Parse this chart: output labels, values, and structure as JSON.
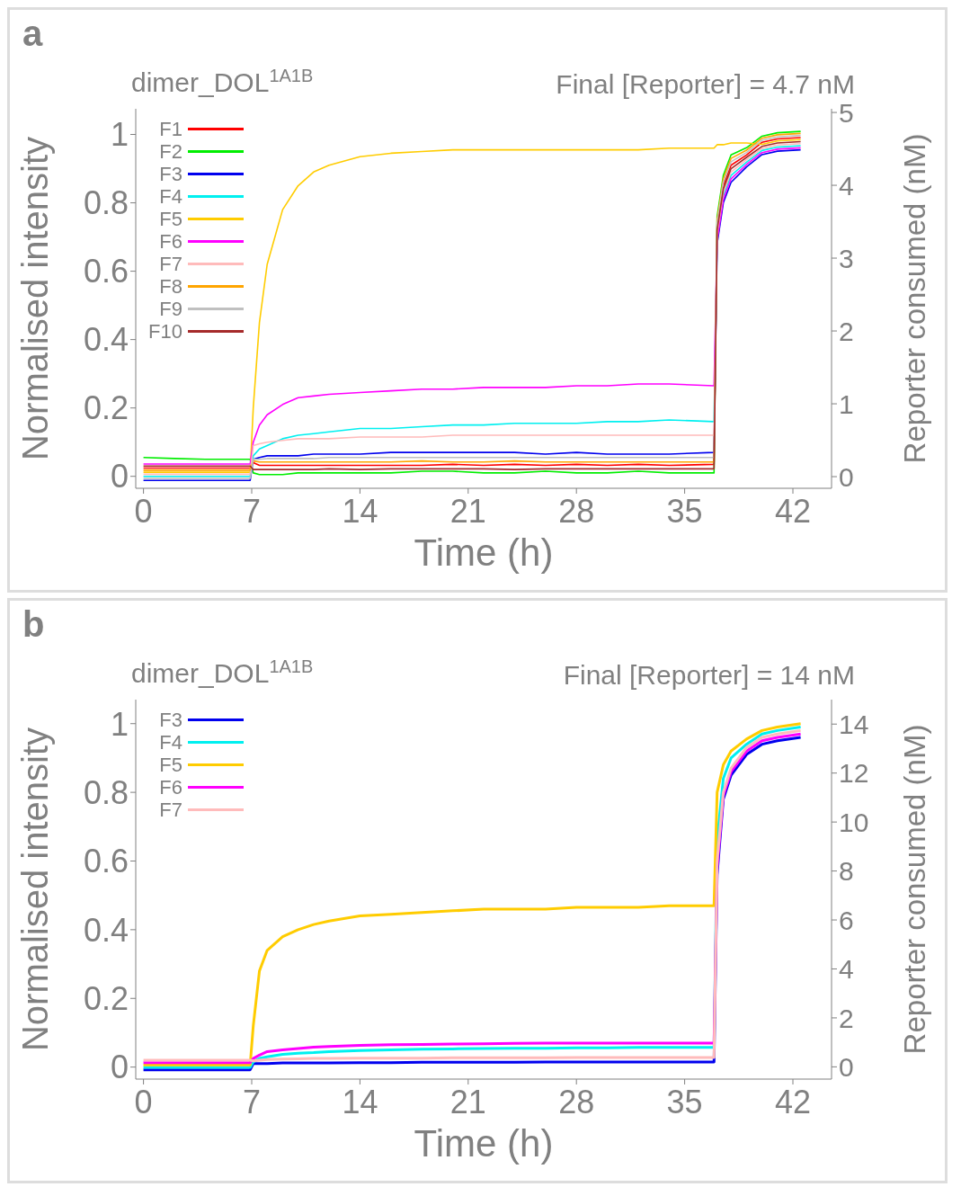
{
  "chart_data": [
    {
      "type": "line",
      "title": "dimer_DOL$^{1A1B}$",
      "subtitle": "Final [Reporter] = 4.7 nM",
      "annotations": [
        "a"
      ],
      "xlabel": "Time (h)",
      "ylabel": "Normalised intensity",
      "y2label": "Reporter consumed (nM)",
      "x": [
        0,
        2,
        4,
        6,
        6.9,
        7.1,
        7.5,
        8,
        9,
        10,
        11,
        12,
        14,
        16,
        18,
        20,
        22,
        24,
        26,
        28,
        30,
        32,
        34,
        36.9,
        37.1,
        37.5,
        38,
        39,
        40,
        41,
        42.5
      ],
      "xlim": [
        -0.5,
        44.5
      ],
      "xticks": [
        0,
        7,
        14,
        21,
        28,
        35,
        42
      ],
      "ylim": [
        -0.035,
        1.075
      ],
      "yticks": [
        0,
        0.2,
        0.4,
        0.6,
        0.8,
        1
      ],
      "y2lim": [
        -0.16,
        5.05
      ],
      "y2ticks": [
        0,
        1,
        2,
        3,
        4,
        5
      ],
      "legend": "top left",
      "series": [
        {
          "name": "F1",
          "color": "#ff0000",
          "values": [
            0.024,
            0.024,
            0.024,
            0.024,
            0.024,
            0.04,
            0.032,
            0.032,
            0.032,
            0.032,
            0.032,
            0.032,
            0.032,
            0.032,
            0.032,
            0.035,
            0.032,
            0.035,
            0.032,
            0.035,
            0.032,
            0.035,
            0.032,
            0.035,
            0.73,
            0.85,
            0.91,
            0.94,
            0.977,
            0.987,
            0.991
          ]
        },
        {
          "name": "F2",
          "color": "#00ee00",
          "values": [
            0.055,
            0.052,
            0.05,
            0.05,
            0.05,
            0.01,
            0.005,
            0.005,
            0.005,
            0.01,
            0.01,
            0.01,
            0.01,
            0.01,
            0.015,
            0.015,
            0.01,
            0.01,
            0.015,
            0.01,
            0.01,
            0.015,
            0.01,
            0.01,
            0.76,
            0.88,
            0.94,
            0.961,
            0.995,
            1.005,
            1.009
          ]
        },
        {
          "name": "F3",
          "color": "#0000ee",
          "values": [
            -0.012,
            -0.012,
            -0.012,
            -0.012,
            -0.012,
            0.05,
            0.055,
            0.06,
            0.06,
            0.06,
            0.065,
            0.065,
            0.065,
            0.07,
            0.07,
            0.07,
            0.07,
            0.07,
            0.065,
            0.07,
            0.065,
            0.065,
            0.065,
            0.07,
            0.68,
            0.8,
            0.86,
            0.905,
            0.941,
            0.951,
            0.955
          ]
        },
        {
          "name": "F4",
          "color": "#00f0f0",
          "values": [
            0,
            0,
            0,
            0,
            0,
            0.06,
            0.08,
            0.09,
            0.11,
            0.12,
            0.125,
            0.13,
            0.14,
            0.14,
            0.145,
            0.15,
            0.15,
            0.155,
            0.155,
            0.155,
            0.16,
            0.16,
            0.165,
            0.16,
            0.7,
            0.82,
            0.88,
            0.919,
            0.953,
            0.963,
            0.967
          ]
        },
        {
          "name": "F5",
          "color": "#ffcc00",
          "values": [
            0.012,
            0.012,
            0.012,
            0.012,
            0.012,
            0.2,
            0.45,
            0.62,
            0.78,
            0.85,
            0.89,
            0.91,
            0.935,
            0.945,
            0.95,
            0.955,
            0.955,
            0.955,
            0.955,
            0.955,
            0.955,
            0.955,
            0.96,
            0.96,
            0.97,
            0.97,
            0.975,
            0.975,
            0.971,
            0.981,
            0.985
          ]
        },
        {
          "name": "F6",
          "color": "#ff00ff",
          "values": [
            0.036,
            0.036,
            0.036,
            0.036,
            0.036,
            0.1,
            0.15,
            0.18,
            0.21,
            0.23,
            0.235,
            0.24,
            0.245,
            0.25,
            0.255,
            0.255,
            0.26,
            0.26,
            0.26,
            0.265,
            0.265,
            0.27,
            0.27,
            0.265,
            0.69,
            0.81,
            0.87,
            0.912,
            0.947,
            0.957,
            0.961
          ]
        },
        {
          "name": "F7",
          "color": "#ffbbbb",
          "values": [
            0.006,
            0.006,
            0.006,
            0.006,
            0.006,
            0.09,
            0.095,
            0.1,
            0.105,
            0.11,
            0.11,
            0.11,
            0.115,
            0.115,
            0.115,
            0.12,
            0.12,
            0.12,
            0.12,
            0.12,
            0.12,
            0.12,
            0.12,
            0.12,
            0.71,
            0.83,
            0.89,
            0.926,
            0.959,
            0.969,
            0.973
          ]
        },
        {
          "name": "F8",
          "color": "#ffa500",
          "values": [
            0.018,
            0.018,
            0.018,
            0.018,
            0.018,
            0.045,
            0.042,
            0.042,
            0.042,
            0.042,
            0.042,
            0.042,
            0.042,
            0.042,
            0.045,
            0.042,
            0.042,
            0.045,
            0.042,
            0.042,
            0.042,
            0.042,
            0.042,
            0.042,
            0.75,
            0.87,
            0.93,
            0.954,
            0.989,
            0.999,
            1.003
          ]
        },
        {
          "name": "F9",
          "color": "#c0c0c0",
          "values": [
            -0.006,
            -0.006,
            -0.006,
            -0.006,
            -0.006,
            0.05,
            0.05,
            0.052,
            0.052,
            0.052,
            0.052,
            0.055,
            0.055,
            0.055,
            0.055,
            0.055,
            0.055,
            0.055,
            0.055,
            0.055,
            0.055,
            0.055,
            0.055,
            0.055,
            0.74,
            0.86,
            0.92,
            0.947,
            0.983,
            0.993,
            0.997
          ]
        },
        {
          "name": "F10",
          "color": "#a52a2a",
          "values": [
            0.03,
            0.03,
            0.03,
            0.03,
            0.03,
            0.02,
            0.02,
            0.02,
            0.02,
            0.02,
            0.02,
            0.022,
            0.02,
            0.022,
            0.022,
            0.022,
            0.022,
            0.02,
            0.022,
            0.022,
            0.022,
            0.022,
            0.022,
            0.022,
            0.72,
            0.84,
            0.9,
            0.933,
            0.965,
            0.975,
            0.979
          ]
        }
      ]
    },
    {
      "type": "line",
      "title": "dimer_DOL$^{1A1B}$",
      "subtitle": "Final [Reporter] = 14 nM",
      "annotations": [
        "b"
      ],
      "xlabel": "Time (h)",
      "ylabel": "Normalised intensity",
      "y2label": "Reporter consumed (nM)",
      "x": [
        0,
        2,
        4,
        6,
        6.9,
        7.1,
        7.5,
        8,
        9,
        10,
        11,
        12,
        14,
        16,
        18,
        20,
        22,
        24,
        26,
        28,
        30,
        32,
        34,
        36.9,
        37.1,
        37.5,
        38,
        39,
        40,
        41,
        42.5
      ],
      "xlim": [
        -0.5,
        44.5
      ],
      "xticks": [
        0,
        7,
        14,
        21,
        28,
        35,
        42
      ],
      "ylim": [
        -0.035,
        1.07
      ],
      "yticks": [
        0,
        0.2,
        0.4,
        0.6,
        0.8,
        1
      ],
      "y2lim": [
        -0.5,
        15
      ],
      "y2ticks": [
        0,
        2,
        4,
        6,
        8,
        10,
        12,
        14
      ],
      "legend": "top left",
      "series": [
        {
          "name": "F3",
          "color": "#0000ee",
          "values": [
            -0.008,
            -0.008,
            -0.008,
            -0.008,
            -0.008,
            0.01,
            0.01,
            0.01,
            0.012,
            0.012,
            0.012,
            0.012,
            0.013,
            0.013,
            0.014,
            0.014,
            0.014,
            0.014,
            0.015,
            0.015,
            0.015,
            0.015,
            0.015,
            0.015,
            0.56,
            0.78,
            0.85,
            0.91,
            0.94,
            0.95,
            0.96
          ]
        },
        {
          "name": "F4",
          "color": "#00f0f0",
          "values": [
            -0.001,
            -0.001,
            -0.001,
            -0.001,
            -0.001,
            0.015,
            0.025,
            0.03,
            0.037,
            0.04,
            0.042,
            0.045,
            0.048,
            0.05,
            0.052,
            0.053,
            0.054,
            0.055,
            0.055,
            0.056,
            0.056,
            0.057,
            0.057,
            0.057,
            0.66,
            0.84,
            0.9,
            0.94,
            0.97,
            0.98,
            0.99
          ]
        },
        {
          "name": "F5",
          "color": "#ffcc00",
          "values": [
            0.006,
            0.006,
            0.006,
            0.006,
            0.006,
            0.12,
            0.28,
            0.34,
            0.38,
            0.4,
            0.415,
            0.425,
            0.44,
            0.445,
            0.45,
            0.455,
            0.46,
            0.46,
            0.46,
            0.465,
            0.465,
            0.465,
            0.47,
            0.47,
            0.8,
            0.88,
            0.92,
            0.955,
            0.98,
            0.99,
            1.0
          ]
        },
        {
          "name": "F6",
          "color": "#ff00ff",
          "values": [
            0.013,
            0.013,
            0.013,
            0.013,
            0.013,
            0.025,
            0.035,
            0.045,
            0.05,
            0.054,
            0.058,
            0.06,
            0.063,
            0.065,
            0.066,
            0.067,
            0.068,
            0.069,
            0.07,
            0.07,
            0.07,
            0.07,
            0.07,
            0.07,
            0.58,
            0.79,
            0.86,
            0.92,
            0.95,
            0.96,
            0.97
          ]
        },
        {
          "name": "F7",
          "color": "#ffbbbb",
          "values": [
            0.02,
            0.02,
            0.02,
            0.02,
            0.02,
            0.018,
            0.02,
            0.022,
            0.023,
            0.024,
            0.025,
            0.025,
            0.026,
            0.026,
            0.026,
            0.027,
            0.027,
            0.027,
            0.027,
            0.028,
            0.028,
            0.028,
            0.028,
            0.028,
            0.6,
            0.8,
            0.87,
            0.93,
            0.96,
            0.97,
            0.98
          ]
        }
      ]
    }
  ]
}
